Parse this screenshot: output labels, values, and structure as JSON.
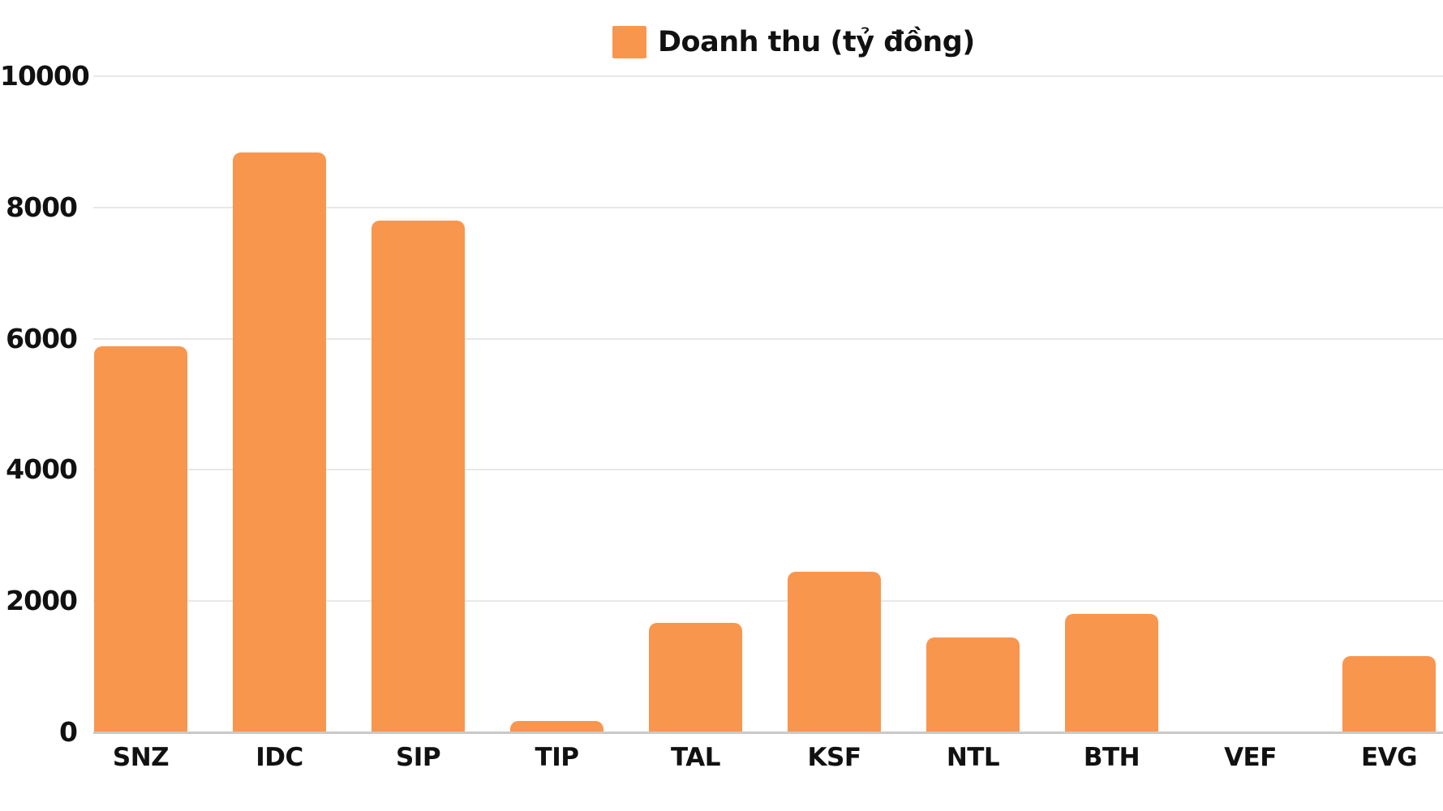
{
  "legend": {
    "label": "Doanh thu (tỷ đồng)"
  },
  "colors": {
    "bar": "#f9964d",
    "text": "#111111",
    "gridline": "#e8e8e8",
    "axis_line": "#c9c9c9",
    "background": "#ffffff"
  },
  "chart_data": {
    "type": "bar",
    "title": "",
    "series_name": "Doanh thu (tỷ đồng)",
    "categories": [
      "SNZ",
      "IDC",
      "SIP",
      "TIP",
      "TAL",
      "KSF",
      "NTL",
      "BTH",
      "VEF",
      "EVG"
    ],
    "values": [
      5885,
      8840,
      7800,
      172,
      1665,
      2450,
      1450,
      1810,
      10,
      1160
    ],
    "xlabel": "",
    "ylabel": "",
    "ylim": [
      0,
      10000
    ],
    "yticks": [
      0,
      2000,
      4000,
      6000,
      8000,
      10000
    ],
    "ytick_labels": [
      "0",
      "2000",
      "4000",
      "6000",
      "8000",
      "10000"
    ],
    "grid": "horizontal",
    "legend_position": "top-center",
    "bar_color": "#f9964d"
  }
}
